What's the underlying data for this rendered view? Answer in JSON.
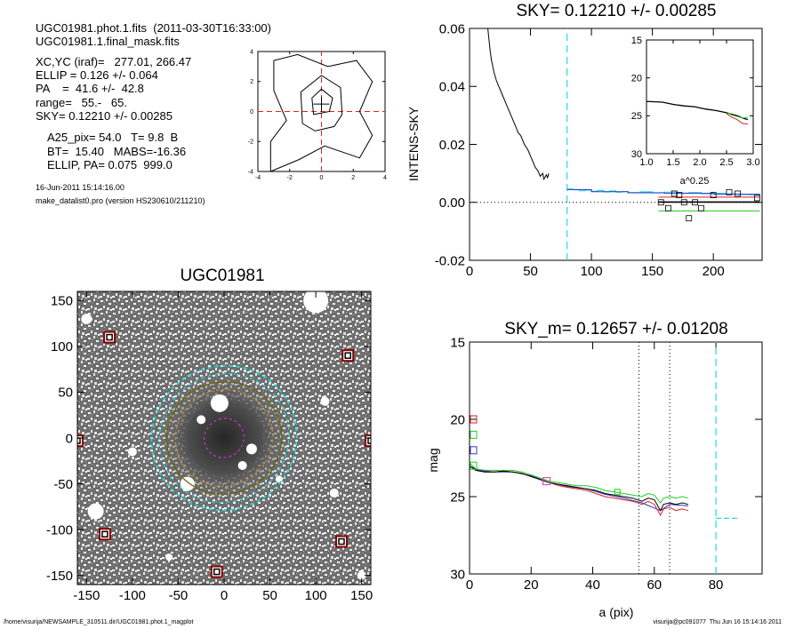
{
  "colors": {
    "sky_cyan": "#22dddd",
    "profile_red": "#dd2222",
    "profile_green": "#22cc22",
    "profile_blue": "#3333cc",
    "magenta": "#cc33cc",
    "orange_ellipse": "#cc8822",
    "olive_ellipse": "#666600",
    "star_mask": "#880000"
  },
  "header": {
    "line1": "UGC01981.phot.1.fits  (2011-03-30T16:33:00)",
    "line2": "UGC01981.1.final_mask.fits",
    "line3": "XC,YC (iraf)=   277.01, 266.47",
    "line4": "ELLIP = 0.126 +/- 0.064",
    "line5": "PA    =  41.6 +/-  42.8",
    "line6": "range=   55.-   65.",
    "line7": "SKY= 0.12210 +/- 0.00285",
    "line8": "A25_pix= 54.0   T= 9.8  B",
    "line9": "BT=  15.40   MABS=-16.36",
    "line10": "ELLIP, PA= 0.075  999.0",
    "date": "16-Jun-2011 15:14:16.00",
    "program": "make_datalist0.pro (version HS230610/211210)"
  },
  "footer": {
    "left": "/home/visurija/NEWSAMPLE_310511.dir/UGC01981.phot.1_magplot",
    "right": "visurija@pc091077  Thu Jun 16 15:14:16 2011"
  },
  "chart_data": [
    {
      "type": "line",
      "id": "contour_center",
      "title": "",
      "xlim": [
        -4,
        4
      ],
      "ylim": [
        -4,
        4
      ],
      "x_ticks": [
        -4,
        -2,
        0,
        2,
        4
      ],
      "y_ticks": [
        -4,
        -2,
        0,
        2,
        4
      ],
      "center_crosshair": [
        0,
        0
      ],
      "contours": [
        [
          [
            -3.2,
            -4
          ],
          [
            -3.2,
            -2.0
          ],
          [
            -2.2,
            -0.6
          ],
          [
            -3.0,
            1.4
          ],
          [
            -3.0,
            3.4
          ],
          [
            -1.5,
            3.8
          ],
          [
            0.4,
            3.0
          ],
          [
            2.2,
            3.4
          ],
          [
            3.2,
            2.0
          ],
          [
            2.4,
            0.0
          ],
          [
            3.2,
            -1.6
          ],
          [
            2.4,
            -3.1
          ],
          [
            0.2,
            -2.3
          ],
          [
            -1.4,
            -3.2
          ],
          [
            -3.2,
            -4
          ]
        ],
        [
          [
            -1.2,
            -0.8
          ],
          [
            -1.3,
            1.3
          ],
          [
            0,
            2.4
          ],
          [
            1.2,
            1.6
          ],
          [
            1.3,
            -0.2
          ],
          [
            0.8,
            -1.0
          ],
          [
            -0.4,
            -1.3
          ],
          [
            -1.2,
            -0.8
          ]
        ],
        [
          [
            -0.5,
            -0.2
          ],
          [
            -0.6,
            0.9
          ],
          [
            0,
            1.5
          ],
          [
            0.7,
            0.9
          ],
          [
            0.5,
            0.0
          ],
          [
            -0.5,
            -0.2
          ]
        ]
      ]
    },
    {
      "type": "line",
      "id": "sky_profile",
      "title": "SKY= 0.12210 +/- 0.00285",
      "xlabel": "",
      "ylabel": "INTENS-SKY",
      "xlim": [
        0,
        240
      ],
      "ylim": [
        -0.02,
        0.06
      ],
      "x_ticks": [
        0,
        50,
        100,
        150,
        200
      ],
      "y_ticks": [
        -0.02,
        0.0,
        0.02,
        0.04,
        0.06
      ],
      "sky_radius_line": 80,
      "profile": [
        [
          15,
          0.06
        ],
        [
          16,
          0.056
        ],
        [
          17,
          0.052
        ],
        [
          18,
          0.049
        ],
        [
          20,
          0.045
        ],
        [
          22,
          0.042
        ],
        [
          25,
          0.039
        ],
        [
          27,
          0.037
        ],
        [
          30,
          0.034
        ],
        [
          33,
          0.031
        ],
        [
          35,
          0.029
        ],
        [
          38,
          0.026
        ],
        [
          40,
          0.024
        ],
        [
          42,
          0.023
        ],
        [
          45,
          0.02
        ],
        [
          48,
          0.018
        ],
        [
          50,
          0.016
        ],
        [
          52,
          0.014
        ],
        [
          54,
          0.012
        ],
        [
          56,
          0.011
        ],
        [
          58,
          0.009
        ],
        [
          60,
          0.01
        ],
        [
          61,
          0.008
        ],
        [
          63,
          0.0095
        ],
        [
          64,
          0.0085
        ],
        [
          65,
          0.01
        ]
      ],
      "step_cyan": [
        [
          80,
          0.0046
        ],
        [
          85,
          0.0043
        ],
        [
          90,
          0.004
        ],
        [
          95,
          0.0042
        ],
        [
          100,
          0.0038
        ],
        [
          105,
          0.0041
        ],
        [
          110,
          0.0036
        ],
        [
          115,
          0.0039
        ],
        [
          120,
          0.0035
        ],
        [
          125,
          0.0037
        ],
        [
          130,
          0.0034
        ],
        [
          140,
          0.0036
        ],
        [
          150,
          0.0033
        ],
        [
          160,
          0.0035
        ],
        [
          170,
          0.0032
        ],
        [
          180,
          0.0034
        ],
        [
          190,
          0.003
        ],
        [
          200,
          0.0031
        ],
        [
          210,
          0.0029
        ],
        [
          220,
          0.0027
        ],
        [
          230,
          0.0026
        ],
        [
          238,
          0.0026
        ]
      ],
      "step_blue": [
        [
          80,
          0.0044
        ],
        [
          100,
          0.0037
        ],
        [
          130,
          0.0033
        ],
        [
          160,
          0.0031
        ],
        [
          200,
          0.0028
        ],
        [
          238,
          0.0025
        ]
      ],
      "squares": [
        [
          157,
          0.0
        ],
        [
          163,
          -0.002
        ],
        [
          168,
          0.003
        ],
        [
          172,
          0.0025
        ],
        [
          176,
          0.0
        ],
        [
          180,
          -0.0055
        ],
        [
          185,
          0.0
        ],
        [
          190,
          -0.002
        ],
        [
          200,
          0.0025
        ],
        [
          213,
          0.0035
        ],
        [
          220,
          0.003
        ],
        [
          236,
          0.0015
        ]
      ],
      "level_red": {
        "x": [
          155,
          238
        ],
        "y": 0.0018
      },
      "level_black": {
        "x": [
          155,
          238
        ],
        "y": 0.0001
      },
      "level_green": {
        "x": [
          155,
          238
        ],
        "y": -0.003
      },
      "zero_line": 0
    },
    {
      "type": "line",
      "id": "inset_profile",
      "title": "",
      "xlabel": "a^0.25",
      "ylabel": "",
      "xlim": [
        1.0,
        3.0
      ],
      "ylim": [
        15,
        30
      ],
      "x_ticks": [
        1.0,
        1.5,
        2.0,
        2.5,
        3.0
      ],
      "y_ticks": [
        15,
        20,
        25,
        30
      ],
      "series": [
        {
          "color": "black",
          "values": [
            [
              1.0,
              23.1
            ],
            [
              1.3,
              23.2
            ],
            [
              1.5,
              23.5
            ],
            [
              1.7,
              23.7
            ],
            [
              1.9,
              23.8
            ],
            [
              2.1,
              24.1
            ],
            [
              2.3,
              24.3
            ],
            [
              2.5,
              24.6
            ],
            [
              2.6,
              24.8
            ],
            [
              2.7,
              25.0
            ],
            [
              2.8,
              25.3
            ],
            [
              2.9,
              25.5
            ]
          ]
        },
        {
          "color": "red",
          "values": [
            [
              2.5,
              24.7
            ],
            [
              2.6,
              25.2
            ],
            [
              2.7,
              25.5
            ],
            [
              2.8,
              26.0
            ],
            [
              2.9,
              26.1
            ]
          ]
        },
        {
          "color": "green",
          "values": [
            [
              2.5,
              24.5
            ],
            [
              2.6,
              24.9
            ],
            [
              2.7,
              25.1
            ],
            [
              2.8,
              25.3
            ],
            [
              2.9,
              25.2
            ]
          ]
        }
      ]
    },
    {
      "type": "scatter",
      "id": "galaxy_image",
      "title": "UGC01981",
      "xlabel": "",
      "ylabel": "",
      "xlim": [
        -160,
        160
      ],
      "ylim": [
        -160,
        160
      ],
      "x_ticks": [
        -150,
        -100,
        -50,
        0,
        50,
        100,
        150
      ],
      "y_ticks": [
        -150,
        -100,
        -50,
        0,
        50,
        100,
        150
      ],
      "masked_stars": [
        [
          -125,
          110
        ],
        [
          135,
          90
        ],
        [
          160,
          -3
        ],
        [
          -160,
          -3
        ],
        [
          -130,
          -105
        ],
        [
          128,
          -113
        ],
        [
          -8,
          -146
        ]
      ],
      "ellipses": [
        {
          "name": "sky_outer",
          "a": 80,
          "b": 78,
          "pa": 41.6,
          "color": "cyan",
          "dashed": true
        },
        {
          "name": "sky_inner",
          "a": 72,
          "b": 69,
          "pa": 41.6,
          "color": "cyan",
          "dashed": true
        },
        {
          "name": "a25",
          "a": 63,
          "b": 61,
          "pa": 20,
          "color": "olive",
          "dashed": false
        },
        {
          "name": "mid",
          "a": 54,
          "b": 52,
          "pa": 41.6,
          "color": "orange",
          "dashed": true
        },
        {
          "name": "inner",
          "a": 22,
          "b": 21,
          "pa": 41.6,
          "color": "magenta",
          "dashed": true
        }
      ]
    },
    {
      "type": "line",
      "id": "mag_profile",
      "title": "SKY_m=  0.12657 +/- 0.01208",
      "xlabel": "a (pix)",
      "ylabel": "mag",
      "xlim": [
        0,
        95
      ],
      "ylim": [
        30,
        15
      ],
      "x_ticks": [
        0,
        20,
        40,
        60,
        80
      ],
      "y_ticks": [
        15,
        20,
        25,
        30
      ],
      "range_lines": [
        55,
        65
      ],
      "sky_line": 80,
      "sky_mag": {
        "x": [
          80,
          87
        ],
        "y": 26.4
      },
      "series": [
        {
          "color": "black",
          "values": [
            [
              0,
              23.0
            ],
            [
              2,
              23.3
            ],
            [
              5,
              23.4
            ],
            [
              8,
              23.4
            ],
            [
              11,
              23.35
            ],
            [
              14,
              23.4
            ],
            [
              17,
              23.5
            ],
            [
              20,
              23.7
            ],
            [
              23,
              23.9
            ],
            [
              26,
              24.1
            ],
            [
              29,
              24.2
            ],
            [
              32,
              24.3
            ],
            [
              35,
              24.4
            ],
            [
              38,
              24.5
            ],
            [
              41,
              24.6
            ],
            [
              44,
              24.8
            ],
            [
              47,
              24.9
            ],
            [
              50,
              25.0
            ],
            [
              53,
              25.1
            ],
            [
              56,
              25.3
            ],
            [
              58,
              25.1
            ],
            [
              60,
              25.2
            ],
            [
              62,
              25.9
            ],
            [
              63,
              25.5
            ],
            [
              65,
              25.4
            ],
            [
              67,
              25.5
            ],
            [
              69,
              25.4
            ],
            [
              71,
              25.5
            ]
          ]
        },
        {
          "color": "red",
          "values": [
            [
              0,
              23.0
            ],
            [
              2,
              23.3
            ],
            [
              5,
              23.4
            ],
            [
              8,
              23.4
            ],
            [
              11,
              23.35
            ],
            [
              14,
              23.4
            ],
            [
              17,
              23.5
            ],
            [
              20,
              23.7
            ],
            [
              23,
              23.9
            ],
            [
              26,
              24.1
            ],
            [
              29,
              24.3
            ],
            [
              32,
              24.4
            ],
            [
              35,
              24.5
            ],
            [
              38,
              24.6
            ],
            [
              41,
              24.8
            ],
            [
              44,
              25.0
            ],
            [
              47,
              25.1
            ],
            [
              50,
              25.2
            ],
            [
              53,
              25.3
            ],
            [
              56,
              25.5
            ],
            [
              58,
              25.3
            ],
            [
              60,
              25.5
            ],
            [
              62,
              26.2
            ],
            [
              63,
              25.8
            ],
            [
              65,
              25.7
            ],
            [
              67,
              25.9
            ],
            [
              69,
              25.8
            ],
            [
              71,
              25.9
            ]
          ]
        },
        {
          "color": "green",
          "values": [
            [
              0,
              22.8
            ],
            [
              2,
              23.2
            ],
            [
              5,
              23.3
            ],
            [
              8,
              23.3
            ],
            [
              11,
              23.3
            ],
            [
              14,
              23.3
            ],
            [
              17,
              23.4
            ],
            [
              20,
              23.6
            ],
            [
              23,
              23.8
            ],
            [
              26,
              24.0
            ],
            [
              29,
              24.1
            ],
            [
              32,
              24.2
            ],
            [
              35,
              24.3
            ],
            [
              38,
              24.3
            ],
            [
              41,
              24.4
            ],
            [
              44,
              24.6
            ],
            [
              47,
              24.7
            ],
            [
              50,
              24.8
            ],
            [
              53,
              24.9
            ],
            [
              56,
              25.0
            ],
            [
              58,
              24.8
            ],
            [
              60,
              24.9
            ],
            [
              62,
              25.4
            ],
            [
              63,
              25.1
            ],
            [
              65,
              25.0
            ],
            [
              67,
              25.1
            ],
            [
              69,
              25.0
            ],
            [
              71,
              25.1
            ]
          ]
        },
        {
          "color": "blue",
          "values": [
            [
              0,
              23.0
            ],
            [
              3,
              23.3
            ],
            [
              8,
              23.4
            ],
            [
              14,
              23.4
            ],
            [
              20,
              23.65
            ],
            [
              26,
              24.1
            ],
            [
              32,
              24.35
            ],
            [
              38,
              24.5
            ],
            [
              44,
              24.85
            ],
            [
              50,
              25.1
            ],
            [
              56,
              25.4
            ],
            [
              62,
              25.9
            ],
            [
              65,
              25.5
            ],
            [
              71,
              25.6
            ]
          ]
        }
      ],
      "left_markers": [
        {
          "color": "red",
          "y": 20.0
        },
        {
          "color": "green",
          "y": 21.0
        },
        {
          "color": "blue",
          "y": 22.0
        },
        {
          "color": "green",
          "y": 23.0
        }
      ],
      "magenta_marker": [
        25,
        24.0
      ],
      "green_marker": [
        48,
        24.7
      ]
    }
  ]
}
